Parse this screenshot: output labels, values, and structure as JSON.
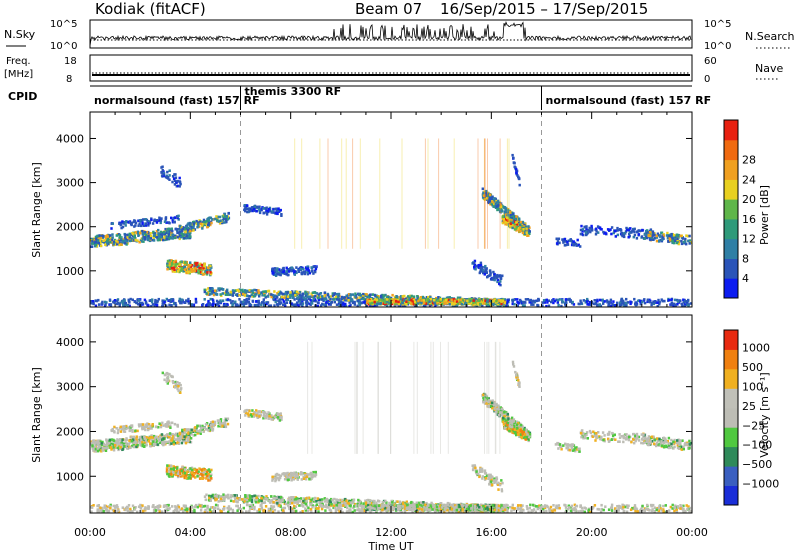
{
  "header": {
    "station": "Kodiak (fitACF)",
    "beam": "Beam 07",
    "date_range": "16/Sep/2015 – 17/Sep/2015"
  },
  "strips": {
    "nsky": {
      "label": "N.Sky",
      "ticks": [
        "10^5",
        "10^0"
      ]
    },
    "nsearch": {
      "label": "N.Search",
      "ticks": [
        "10^5",
        "10^0"
      ]
    },
    "freq": {
      "label1": "Freq.",
      "label2": "[MHz]",
      "ticks": [
        "18",
        "8"
      ]
    },
    "nave": {
      "label": "Nave",
      "ticks": [
        "60",
        "0"
      ]
    },
    "cpid": {
      "label": "CPID",
      "segments": [
        {
          "text": "normalsound (fast) 157 RF",
          "start_h": 0,
          "end_h": 6
        },
        {
          "text": "themis 3300 RF",
          "start_h": 6,
          "end_h": 18
        },
        {
          "text": "normalsound (fast) 157 RF",
          "start_h": 18,
          "end_h": 24
        }
      ]
    }
  },
  "chart_data": [
    {
      "type": "heatmap",
      "ylabel": "Slant Range [km]",
      "xlabel": "Time UT",
      "x_ticks": [
        "00:00",
        "04:00",
        "08:00",
        "12:00",
        "16:00",
        "20:00",
        "00:00"
      ],
      "xlim_hours": [
        0,
        24
      ],
      "y_ticks": [
        1000,
        2000,
        3000,
        4000
      ],
      "ylim": [
        180,
        4600
      ],
      "colorbar": {
        "label": "Power [dB]",
        "ticks": [
          "4",
          "8",
          "12",
          "16",
          "20",
          "24",
          "28"
        ],
        "colors": [
          "#0c1cf0",
          "#2a54b8",
          "#2f7fa5",
          "#2f9a7a",
          "#5fb64a",
          "#e8d020",
          "#f0a020",
          "#f06a10",
          "#e82010"
        ]
      }
    },
    {
      "type": "heatmap",
      "ylabel": "Slant Range [km]",
      "xlabel": "Time UT",
      "x_ticks": [
        "00:00",
        "04:00",
        "08:00",
        "12:00",
        "16:00",
        "20:00",
        "00:00"
      ],
      "xlim_hours": [
        0,
        24
      ],
      "y_ticks": [
        1000,
        2000,
        3000,
        4000
      ],
      "ylim": [
        180,
        4600
      ],
      "colorbar": {
        "label": "Velocity [m s⁻¹]",
        "ticks": [
          "1000",
          "500",
          "100",
          "25",
          "−25",
          "−100",
          "−500",
          "−1000"
        ],
        "colors": [
          "#1a2ed8",
          "#3a5fc0",
          "#2f8a5a",
          "#50c840",
          "#bdbdb5",
          "#c0c0b8",
          "#f0b020",
          "#f08010",
          "#e82a10"
        ]
      }
    }
  ]
}
